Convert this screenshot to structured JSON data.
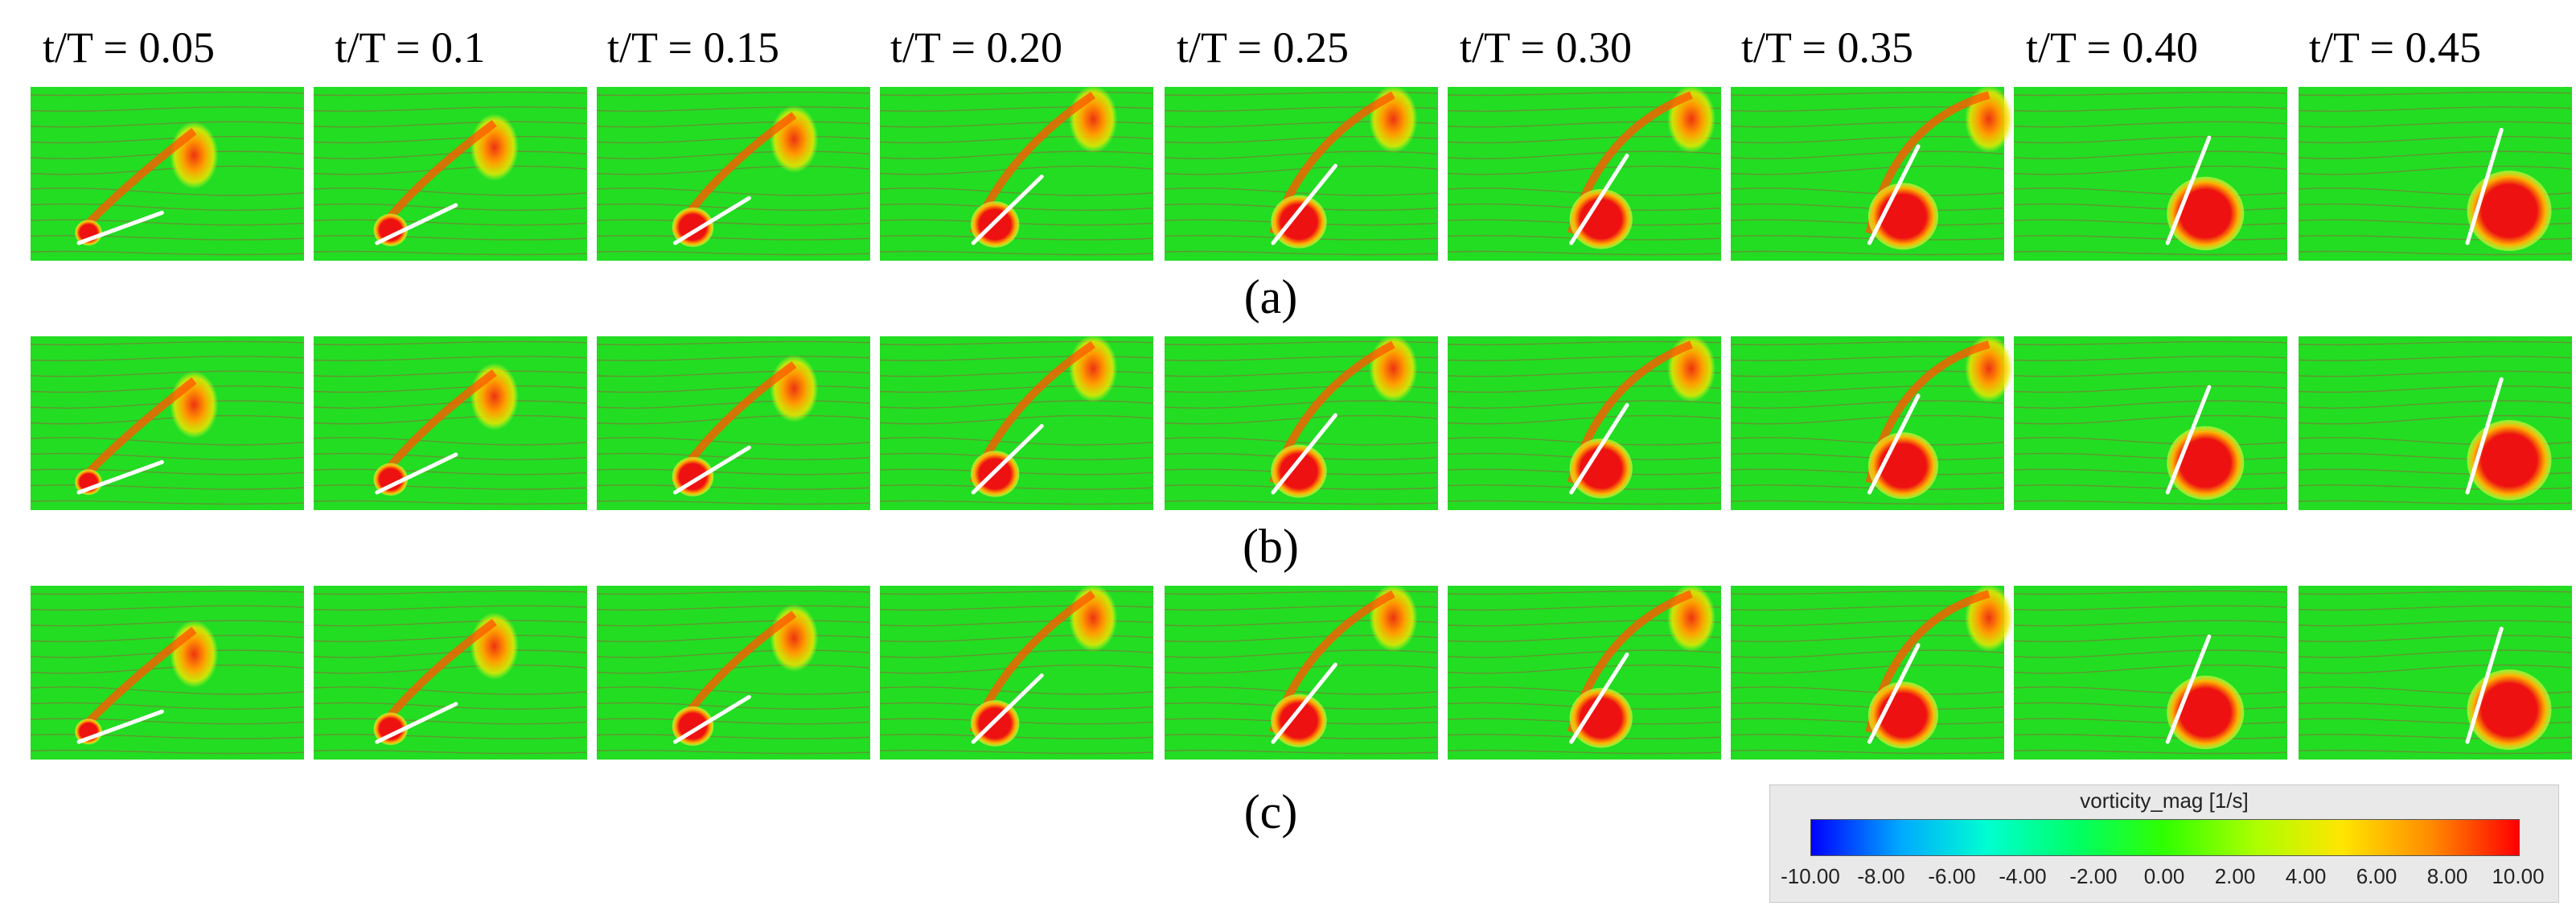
{
  "time_labels": [
    "t/T = 0.05",
    "t/T = 0.1",
    "t/T = 0.15",
    "t/T = 0.20",
    "t/T = 0.25",
    "t/T = 0.30",
    "t/T = 0.35",
    "t/T = 0.40",
    "t/T = 0.45"
  ],
  "rows": [
    {
      "label": "(a)"
    },
    {
      "label": "(b)"
    },
    {
      "label": "(c)"
    }
  ],
  "colorbar": {
    "title": "vorticity_mag [1/s]",
    "ticks": [
      "-10.00",
      "-8.00",
      "-6.00",
      "-4.00",
      "-2.00",
      "0.00",
      "2.00",
      "4.00",
      "6.00",
      "8.00",
      "10.00"
    ],
    "colors": [
      "#0000ff",
      "#00a8ff",
      "#00ffd0",
      "#00ff66",
      "#30ff00",
      "#aaff00",
      "#ffe600",
      "#ff8c00",
      "#ff0000"
    ]
  },
  "colors": {
    "background_field": "#22dd22",
    "vortex_core": "#ee1111",
    "vortex_edge": "#ffb000",
    "streamline": "#6f8a35",
    "plate": "#ffffff"
  }
}
